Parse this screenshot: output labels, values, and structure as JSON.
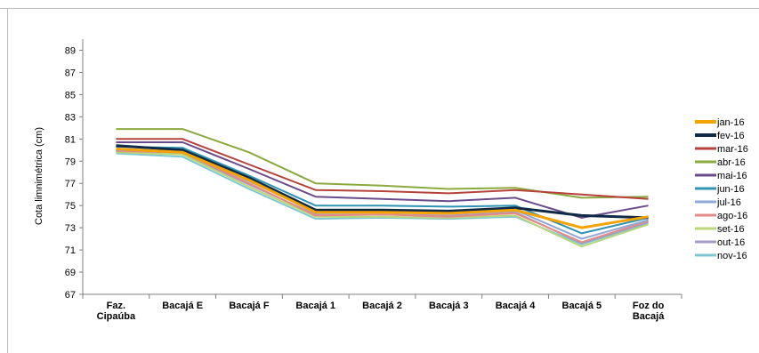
{
  "chart_data": {
    "type": "line",
    "title": "",
    "xlabel": "",
    "ylabel": "Cota limnimétrica (cm)",
    "ylim": [
      67,
      90
    ],
    "yticks": [
      "67",
      "69",
      "71",
      "73",
      "75",
      "77",
      "79",
      "81",
      "83",
      "85",
      "87",
      "89"
    ],
    "grid": false,
    "legend_position": "right",
    "categories": [
      [
        "Faz.",
        "Cipaúba"
      ],
      [
        "Bacajá E"
      ],
      [
        "Bacajá F"
      ],
      [
        "Bacajá 1"
      ],
      [
        "Bacajá 2"
      ],
      [
        "Bacajá 3"
      ],
      [
        "Bacajá 4"
      ],
      [
        "Bacajá 5"
      ],
      [
        "Foz do",
        "Bacajá"
      ]
    ],
    "series": [
      {
        "name": "jan-16",
        "color": "#f5a300",
        "width": 3,
        "values": [
          80.1,
          79.8,
          77.3,
          74.4,
          74.4,
          74.3,
          74.6,
          73.0,
          74.0
        ]
      },
      {
        "name": "fev-16",
        "color": "#0f2a45",
        "width": 3,
        "values": [
          80.4,
          80.0,
          77.5,
          74.6,
          74.6,
          74.5,
          74.8,
          74.1,
          73.9
        ]
      },
      {
        "name": "mar-16",
        "color": "#b5433c",
        "width": 2,
        "values": [
          81.0,
          81.0,
          78.7,
          76.4,
          76.3,
          76.1,
          76.4,
          76.0,
          75.6
        ]
      },
      {
        "name": "abr-16",
        "color": "#8aaa3f",
        "width": 2,
        "values": [
          81.9,
          81.9,
          79.8,
          77.0,
          76.8,
          76.5,
          76.6,
          75.7,
          75.8
        ]
      },
      {
        "name": "mai-16",
        "color": "#6a4b8c",
        "width": 2,
        "values": [
          80.7,
          80.7,
          78.3,
          75.8,
          75.6,
          75.4,
          75.7,
          73.9,
          75.0
        ]
      },
      {
        "name": "jun-16",
        "color": "#2f93b3",
        "width": 2,
        "values": [
          80.3,
          80.2,
          77.7,
          75.0,
          75.0,
          74.9,
          75.0,
          72.5,
          73.9
        ]
      },
      {
        "name": "jul-16",
        "color": "#8ea8d8",
        "width": 2,
        "values": [
          80.0,
          79.9,
          77.2,
          74.4,
          74.4,
          74.3,
          74.6,
          72.0,
          73.7
        ]
      },
      {
        "name": "ago-16",
        "color": "#e68a86",
        "width": 2,
        "values": [
          79.9,
          79.8,
          77.0,
          74.1,
          74.2,
          74.0,
          74.3,
          71.7,
          73.6
        ]
      },
      {
        "name": "set-16",
        "color": "#b8d67a",
        "width": 2,
        "values": [
          79.8,
          79.6,
          76.7,
          74.0,
          74.0,
          73.9,
          74.1,
          71.3,
          73.3
        ]
      },
      {
        "name": "out-16",
        "color": "#a59bc6",
        "width": 2,
        "values": [
          79.9,
          79.7,
          76.9,
          74.2,
          74.2,
          74.1,
          74.4,
          71.6,
          73.5
        ]
      },
      {
        "name": "nov-16",
        "color": "#7ec7d1",
        "width": 2,
        "values": [
          79.7,
          79.4,
          76.5,
          73.8,
          73.9,
          73.8,
          74.0,
          71.5,
          73.4
        ]
      }
    ]
  }
}
